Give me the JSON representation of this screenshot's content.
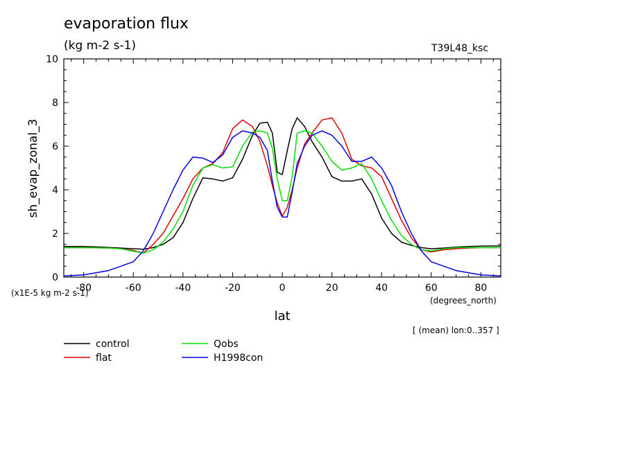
{
  "chart_data": {
    "type": "line",
    "title": "evaporation flux",
    "subtitle": "(kg m-2 s-1)",
    "run_label": "T39L48_ksc",
    "xlabel": "lat",
    "ylabel": "sh_evap_zonal_3",
    "x_units": "(degrees_north)",
    "y_units": "(x1E-5 kg m-2 s-1)",
    "note": "[ (mean) lon:0..357 ]",
    "xlim": [
      -88,
      88
    ],
    "ylim": [
      0,
      10
    ],
    "x_ticks": [
      "-80",
      "-60",
      "-40",
      "-20",
      "0",
      "20",
      "40",
      "60",
      "80"
    ],
    "y_ticks": [
      "0",
      "2",
      "4",
      "6",
      "8",
      "10"
    ],
    "grid": false,
    "legend_position": "bottom-left",
    "x": [
      -88,
      -80,
      -75,
      -70,
      -65,
      -60,
      -56,
      -52,
      -48,
      -44,
      -40,
      -36,
      -32,
      -28,
      -24,
      -20,
      -16,
      -12,
      -9,
      -6,
      -4,
      -2,
      0,
      2,
      4,
      6,
      9,
      12,
      16,
      20,
      24,
      28,
      32,
      36,
      40,
      44,
      48,
      52,
      56,
      60,
      65,
      70,
      75,
      80,
      88
    ],
    "series": [
      {
        "name": "control",
        "color": "#000000",
        "values": [
          1.4,
          1.4,
          1.38,
          1.36,
          1.33,
          1.3,
          1.28,
          1.35,
          1.5,
          1.8,
          2.5,
          3.6,
          4.55,
          4.5,
          4.4,
          4.55,
          5.4,
          6.5,
          7.05,
          7.1,
          6.6,
          4.8,
          4.7,
          5.8,
          6.8,
          7.3,
          6.9,
          6.2,
          5.5,
          4.6,
          4.4,
          4.4,
          4.5,
          3.8,
          2.7,
          2.0,
          1.6,
          1.45,
          1.35,
          1.3,
          1.33,
          1.37,
          1.4,
          1.42,
          1.43
        ]
      },
      {
        "name": "flat",
        "color": "#e00000",
        "values": [
          1.35,
          1.35,
          1.34,
          1.33,
          1.3,
          1.22,
          1.1,
          1.5,
          2.0,
          2.8,
          3.6,
          4.5,
          5.0,
          5.2,
          5.7,
          6.8,
          7.2,
          6.9,
          6.2,
          5.1,
          4.2,
          3.4,
          2.8,
          3.2,
          4.0,
          5.0,
          6.1,
          6.6,
          7.2,
          7.3,
          6.6,
          5.4,
          5.1,
          5.0,
          4.6,
          3.6,
          2.6,
          1.8,
          1.25,
          1.15,
          1.25,
          1.3,
          1.33,
          1.35,
          1.35
        ]
      },
      {
        "name": "Qobs",
        "color": "#00e000",
        "values": [
          1.35,
          1.35,
          1.34,
          1.33,
          1.3,
          1.18,
          1.1,
          1.25,
          1.6,
          2.2,
          3.0,
          4.2,
          5.0,
          5.15,
          5.0,
          5.05,
          6.0,
          6.65,
          6.7,
          6.6,
          5.9,
          4.5,
          3.5,
          3.5,
          4.6,
          6.6,
          6.7,
          6.6,
          6.0,
          5.3,
          4.9,
          5.0,
          5.2,
          4.5,
          3.5,
          2.6,
          1.9,
          1.5,
          1.25,
          1.2,
          1.3,
          1.35,
          1.35,
          1.35,
          1.35
        ]
      },
      {
        "name": "H1998con",
        "color": "#0000e0",
        "values": [
          0.05,
          0.1,
          0.2,
          0.3,
          0.5,
          0.7,
          1.2,
          2.0,
          3.0,
          4.0,
          4.9,
          5.5,
          5.45,
          5.25,
          5.6,
          6.4,
          6.7,
          6.6,
          6.4,
          5.8,
          4.4,
          3.2,
          2.75,
          2.75,
          3.9,
          5.2,
          6.0,
          6.5,
          6.7,
          6.5,
          6.0,
          5.3,
          5.3,
          5.5,
          5.0,
          4.2,
          3.0,
          2.0,
          1.2,
          0.7,
          0.5,
          0.3,
          0.2,
          0.1,
          0.05
        ]
      }
    ]
  }
}
